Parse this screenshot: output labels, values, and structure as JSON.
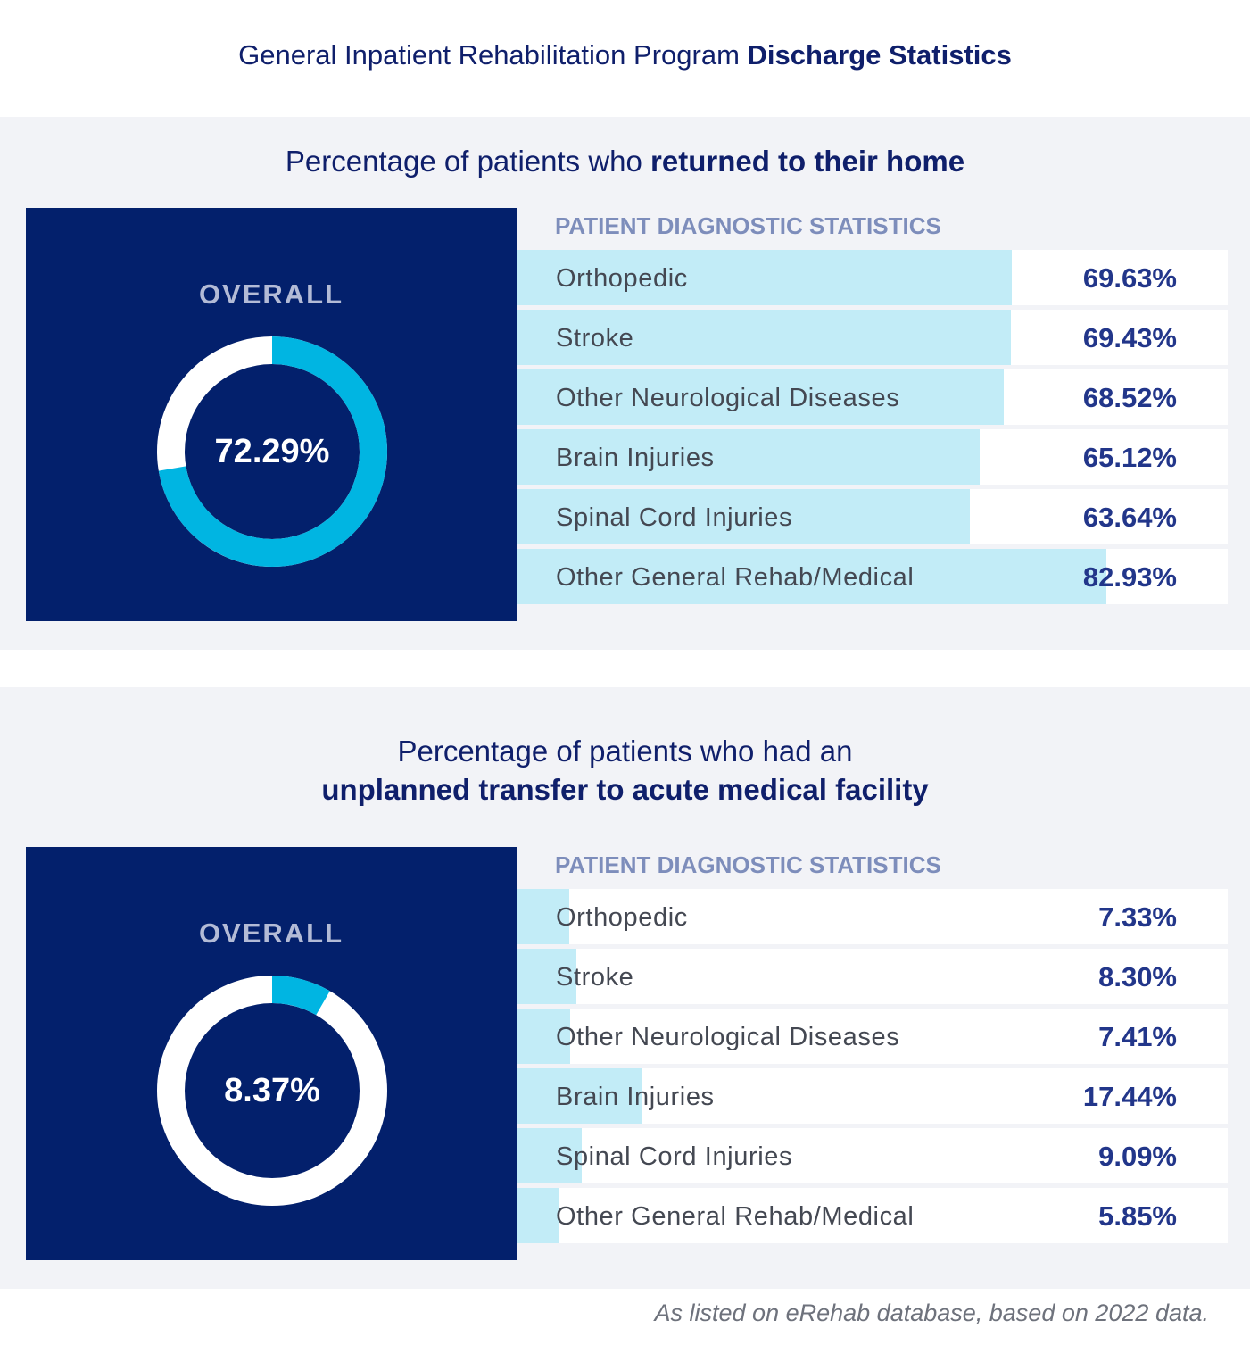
{
  "title": {
    "normal": "General Inpatient Rehabilitation Program ",
    "bold": "Discharge Statistics"
  },
  "colors": {
    "navy": "#03206c",
    "accent": "#00b5e2",
    "bar": "#c2ecf7",
    "panel": "#f2f3f7",
    "header": "#7d8dbb"
  },
  "chart_data": [
    {
      "type": "bar",
      "title_normal": "Percentage of patients who ",
      "title_bold": "returned to their home",
      "overall_label": "OVERALL",
      "overall_value": 72.29,
      "overall_text": "72.29%",
      "header": "PATIENT DIAGNOSTIC STATISTICS",
      "categories": [
        "Orthopedic",
        "Stroke",
        "Other Neurological Diseases",
        "Brain Injuries",
        "Spinal Cord Injuries",
        "Other General Rehab/Medical"
      ],
      "values": [
        69.63,
        69.43,
        68.52,
        65.12,
        63.64,
        82.93
      ],
      "value_labels": [
        "69.63%",
        "69.43%",
        "68.52%",
        "65.12%",
        "63.64%",
        "82.93%"
      ],
      "ylim": [
        0,
        100
      ]
    },
    {
      "type": "bar",
      "title_line1": "Percentage of patients who had an",
      "title_bold": "unplanned transfer to acute medical facility",
      "overall_label": "OVERALL",
      "overall_value": 8.37,
      "overall_text": "8.37%",
      "header": "PATIENT DIAGNOSTIC STATISTICS",
      "categories": [
        "Orthopedic",
        "Stroke",
        "Other Neurological Diseases",
        "Brain Injuries",
        "Spinal Cord Injuries",
        "Other General Rehab/Medical"
      ],
      "values": [
        7.33,
        8.3,
        7.41,
        17.44,
        9.09,
        5.85
      ],
      "value_labels": [
        "7.33%",
        "8.30%",
        "7.41%",
        "17.44%",
        "9.09%",
        "5.85%"
      ],
      "ylim": [
        0,
        100
      ]
    }
  ],
  "footnote": "As listed on eRehab database, based on 2022 data."
}
